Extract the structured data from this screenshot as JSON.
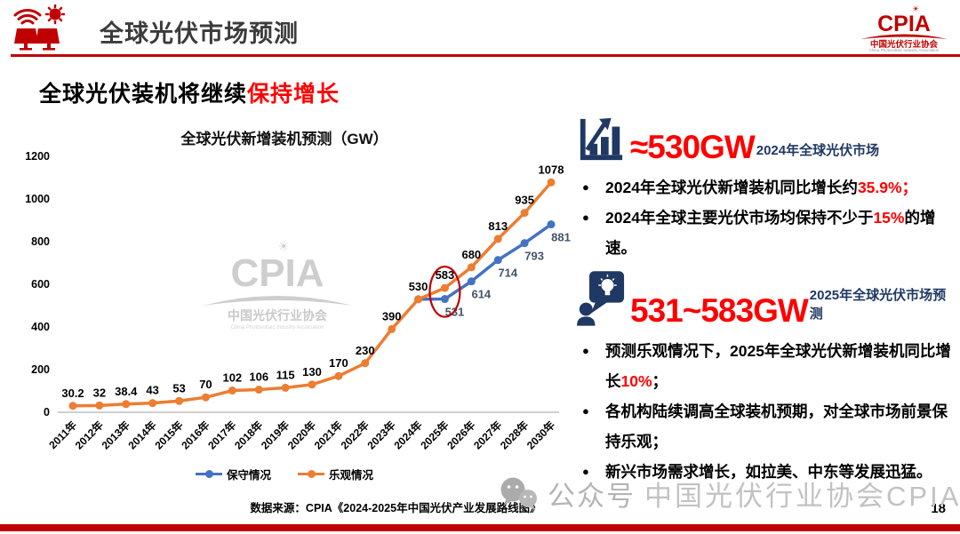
{
  "header": {
    "title": "全球光伏市场预测",
    "logo": {
      "text": "CPIA",
      "cn": "中国光伏行业协会",
      "en": "China Photovoltaic Industry Association"
    }
  },
  "subtitle": {
    "black": "全球光伏装机将继续",
    "red": "保持增长"
  },
  "chart_data": {
    "type": "line",
    "title": "全球光伏新增装机预测（GW）",
    "categories": [
      "2011年",
      "2012年",
      "2013年",
      "2014年",
      "2015年",
      "2016年",
      "2017年",
      "2018年",
      "2019年",
      "2020年",
      "2021年",
      "2022年",
      "2023年",
      "2024年",
      "2025年",
      "2026年",
      "2027年",
      "2028年",
      "2030年"
    ],
    "series": [
      {
        "name": "保守情况",
        "color": "#4472C4",
        "label_color": "#44546A",
        "label_side": "below",
        "values": [
          null,
          null,
          null,
          null,
          null,
          null,
          null,
          null,
          null,
          null,
          null,
          null,
          null,
          530,
          531,
          614,
          714,
          793,
          881
        ],
        "show_label_from": 14
      },
      {
        "name": "乐观情况",
        "color": "#ED7D31",
        "label_color": "#000000",
        "label_side": "above",
        "values": [
          30.2,
          32,
          38.4,
          43,
          53,
          70,
          102,
          106,
          115,
          130,
          170,
          230,
          390,
          530,
          583,
          680,
          813,
          935,
          1078
        ],
        "show_label_from": 0
      }
    ],
    "ylim": [
      0,
      1200
    ],
    "ytick_step": 200,
    "grid": false,
    "legend_position": "bottom",
    "annotation": {
      "type": "ellipse",
      "category": "2025年",
      "color": "#C00000"
    }
  },
  "source": "数据来源：CPIA《2024-2025年中国光伏产业发展路线图》",
  "panel": {
    "s1": {
      "headline": "≈530GW",
      "headline_sub": "2024年全球光伏市场",
      "bullets": [
        {
          "pre": "2024年全球光伏新增装机同比增长约",
          "hl": "35.9%；",
          "post": ""
        },
        {
          "pre": "2024年全球主要光伏市场均保持不少于",
          "hl": "15%",
          "post": "的增速。"
        }
      ]
    },
    "s2": {
      "headline": "531~583GW",
      "headline_sub": "2025年全球光伏市场预测",
      "bullets": [
        {
          "pre": "预测乐观情况下，2025年全球光伏新增装机同比增长",
          "hl": "10%",
          "post": "；"
        },
        {
          "pre": "各机构陆续调高全球装机预期，对全球市场前景保持乐观；",
          "hl": "",
          "post": ""
        },
        {
          "pre": "新兴市场需求增长，如拉美、中东等发展迅猛。",
          "hl": "",
          "post": ""
        }
      ]
    }
  },
  "chart_watermark": {
    "text": "CPIA",
    "cn": "中国光伏行业协会",
    "en": "China Photovoltaic Industry Association"
  },
  "watermark": {
    "wechat_label": "公众号",
    "account": "中国光伏行业协会CPIA"
  },
  "page_number": "18",
  "colors": {
    "accent_red": "#C00000",
    "bright_red": "#FF0000",
    "navy": "#1F3864",
    "orange": "#ED7D31",
    "blue": "#4472C4",
    "watermark_gray": "#c4c4c4"
  }
}
